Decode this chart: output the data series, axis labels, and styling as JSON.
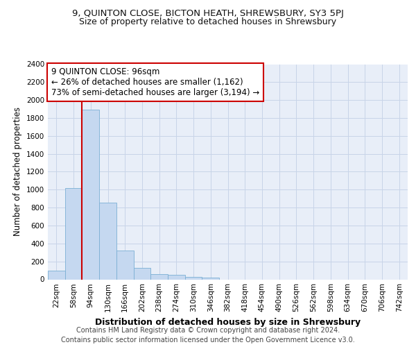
{
  "title1": "9, QUINTON CLOSE, BICTON HEATH, SHREWSBURY, SY3 5PJ",
  "title2": "Size of property relative to detached houses in Shrewsbury",
  "xlabel": "Distribution of detached houses by size in Shrewsbury",
  "ylabel": "Number of detached properties",
  "categories": [
    "22sqm",
    "58sqm",
    "94sqm",
    "130sqm",
    "166sqm",
    "202sqm",
    "238sqm",
    "274sqm",
    "310sqm",
    "346sqm",
    "382sqm",
    "418sqm",
    "454sqm",
    "490sqm",
    "526sqm",
    "562sqm",
    "598sqm",
    "634sqm",
    "670sqm",
    "706sqm",
    "742sqm"
  ],
  "bar_values": [
    95,
    1020,
    1890,
    855,
    320,
    125,
    60,
    50,
    30,
    20,
    0,
    0,
    0,
    0,
    0,
    0,
    0,
    0,
    0,
    0,
    0
  ],
  "bar_color": "#c5d8f0",
  "bar_edge_color": "#7bafd4",
  "grid_color": "#c8d4e8",
  "background_color": "#e8eef8",
  "annotation_line1": "9 QUINTON CLOSE: 96sqm",
  "annotation_line2": "← 26% of detached houses are smaller (1,162)",
  "annotation_line3": "73% of semi-detached houses are larger (3,194) →",
  "annotation_box_color": "#ffffff",
  "annotation_box_edge_color": "#cc0000",
  "vline_color": "#cc0000",
  "vline_x_index": 2,
  "ylim": [
    0,
    2400
  ],
  "yticks": [
    0,
    200,
    400,
    600,
    800,
    1000,
    1200,
    1400,
    1600,
    1800,
    2000,
    2200,
    2400
  ],
  "footer1": "Contains HM Land Registry data © Crown copyright and database right 2024.",
  "footer2": "Contains public sector information licensed under the Open Government Licence v3.0.",
  "title1_fontsize": 9.5,
  "title2_fontsize": 9,
  "xlabel_fontsize": 9,
  "ylabel_fontsize": 8.5,
  "tick_fontsize": 7.5,
  "annotation_fontsize": 8.5,
  "footer_fontsize": 7
}
